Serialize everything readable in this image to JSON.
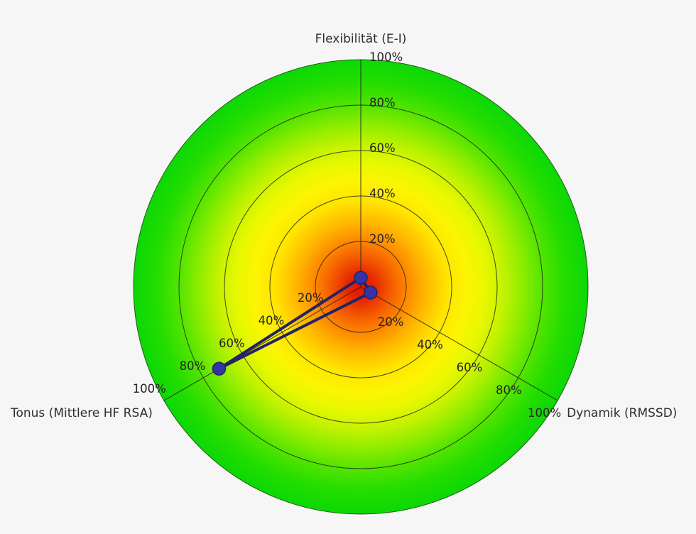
{
  "page": {
    "background_color": "#f6f6f6"
  },
  "chart_data": {
    "type": "radar",
    "subtype": "hrv-autonomic-balance-target",
    "unit": "%",
    "axis_range_pct": [
      0,
      100
    ],
    "rings_pct": [
      20,
      40,
      60,
      80,
      100
    ],
    "ring_tick_labels": [
      "20%",
      "40%",
      "60%",
      "80%",
      "100%"
    ],
    "axes": [
      {
        "id": "flexibilitaet",
        "label": "Flexibilität (E-I)",
        "direction": "up",
        "angle_deg": 90,
        "value_pct": 4
      },
      {
        "id": "dynamik",
        "label": "Dynamik (RMSSD)",
        "direction": "down-right",
        "angle_deg": -30,
        "value_pct": 5
      },
      {
        "id": "tonus",
        "label": "Tonus (Mittlere HF RSA)",
        "direction": "down-left",
        "angle_deg": 210,
        "value_pct": 72
      }
    ],
    "series": [
      {
        "name": "measurement",
        "values_pct": [
          4,
          5,
          72
        ],
        "line_color": "#232366",
        "marker_color": "#3434a4"
      }
    ],
    "background_gradient": {
      "type": "radial",
      "stops": [
        {
          "offset": 0.0,
          "color": "#df1200"
        },
        {
          "offset": 0.06,
          "color": "#e62800"
        },
        {
          "offset": 0.14,
          "color": "#f56000"
        },
        {
          "offset": 0.2,
          "color": "#fd8500"
        },
        {
          "offset": 0.28,
          "color": "#ffb400"
        },
        {
          "offset": 0.38,
          "color": "#ffe500"
        },
        {
          "offset": 0.47,
          "color": "#fcf500"
        },
        {
          "offset": 0.55,
          "color": "#e7f800"
        },
        {
          "offset": 0.63,
          "color": "#c3f200"
        },
        {
          "offset": 0.72,
          "color": "#8aec00"
        },
        {
          "offset": 0.8,
          "color": "#54e400"
        },
        {
          "offset": 0.9,
          "color": "#23dd00"
        },
        {
          "offset": 1.0,
          "color": "#0cd806"
        }
      ]
    },
    "grid_color": "#1c1c1c",
    "outer_edge_color": "#164000",
    "text_color": "#2d2d2d",
    "legend": null,
    "grid": true
  }
}
